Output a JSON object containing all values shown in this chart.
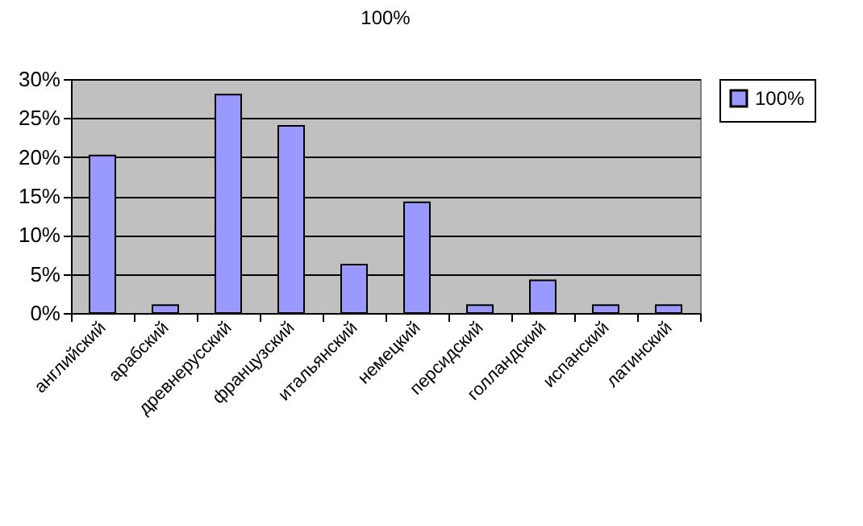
{
  "chart_data": {
    "type": "bar",
    "title": "100%",
    "categories": [
      "английский",
      "арабский",
      "древнерусский",
      "французский",
      "итальянский",
      "немецкий",
      "персидский",
      "голландский",
      "испанский",
      "латинский"
    ],
    "series": [
      {
        "name": "100%",
        "color": "#9999ff",
        "values": [
          20.2,
          1,
          28,
          24,
          6.2,
          14.2,
          1,
          4.2,
          1,
          1
        ]
      }
    ],
    "ylim": [
      0,
      30
    ],
    "yticks": [
      {
        "value": 0,
        "label": "0%"
      },
      {
        "value": 5,
        "label": "5%"
      },
      {
        "value": 10,
        "label": "10%"
      },
      {
        "value": 15,
        "label": "15%"
      },
      {
        "value": 20,
        "label": "20%"
      },
      {
        "value": 25,
        "label": "25%"
      },
      {
        "value": 30,
        "label": "30%"
      }
    ],
    "grid": "y",
    "legend": "right"
  }
}
